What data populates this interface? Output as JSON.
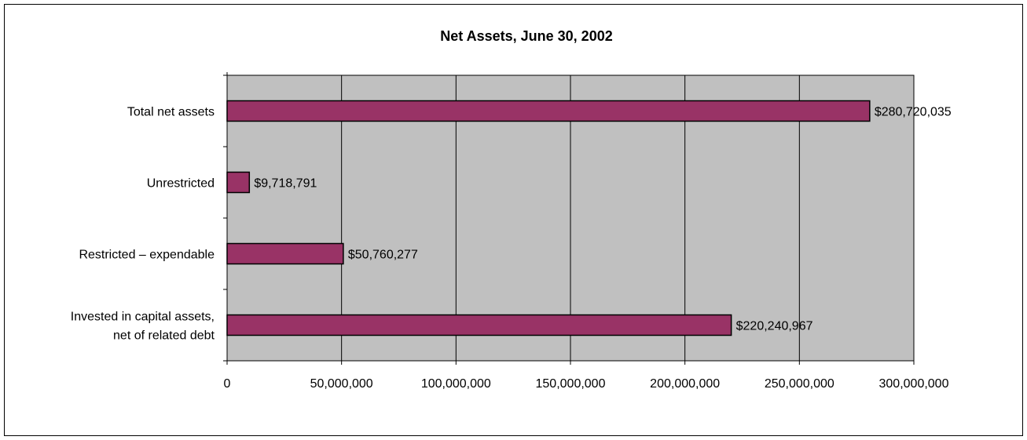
{
  "chart_data": {
    "type": "bar",
    "orientation": "horizontal",
    "title": "Net Assets, June 30, 2002",
    "xlabel": "",
    "ylabel": "",
    "xlim": [
      0,
      300000000
    ],
    "x_ticks": [
      0,
      50000000,
      100000000,
      150000000,
      200000000,
      250000000,
      300000000
    ],
    "x_tick_labels": [
      "0",
      "50,000,000",
      "100,000,000",
      "150,000,000",
      "200,000,000",
      "250,000,000",
      "300,000,000"
    ],
    "grid": "vertical major gridlines",
    "legend": "none",
    "categories": [
      [
        "Total net assets"
      ],
      [
        "Unrestricted"
      ],
      [
        "Restricted – expendable"
      ],
      [
        "Invested in capital assets,",
        "net of related debt"
      ]
    ],
    "values": [
      280720035,
      9718791,
      50760277,
      220240967
    ],
    "data_labels": [
      "$280,720,035",
      "$9,718,791",
      "$50,760,277",
      "$220,240,967"
    ],
    "colors": {
      "bar_fill": "#993366",
      "plot_background": "#c0c0c0",
      "gridline": "#000000"
    }
  }
}
